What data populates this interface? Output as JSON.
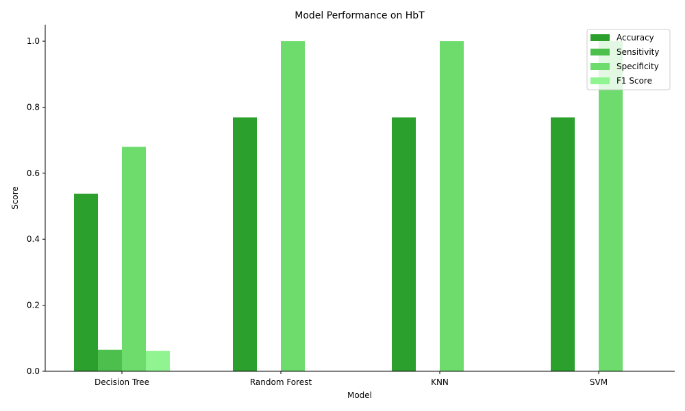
{
  "chart_data": {
    "type": "bar",
    "title": "Model Performance on HbT",
    "xlabel": "Model",
    "ylabel": "Score",
    "categories": [
      "Decision Tree",
      "Random Forest",
      "KNN",
      "SVM"
    ],
    "series": [
      {
        "name": "Accuracy",
        "color": "#2ca02c",
        "values": [
          0.538,
          0.769,
          0.769,
          0.769
        ]
      },
      {
        "name": "Sensitivity",
        "color": "#4cbf4c",
        "values": [
          0.065,
          0.0,
          0.0,
          0.0
        ]
      },
      {
        "name": "Specificity",
        "color": "#6ddc6d",
        "values": [
          0.68,
          1.0,
          1.0,
          1.0
        ]
      },
      {
        "name": "F1 Score",
        "color": "#90f590",
        "values": [
          0.062,
          0.0,
          0.0,
          0.0
        ]
      }
    ],
    "ylim": [
      0,
      1.05
    ],
    "yticks": [
      "0.0",
      "0.2",
      "0.4",
      "0.6",
      "0.8",
      "1.0"
    ],
    "legend_position": "top-right",
    "grid": false
  }
}
